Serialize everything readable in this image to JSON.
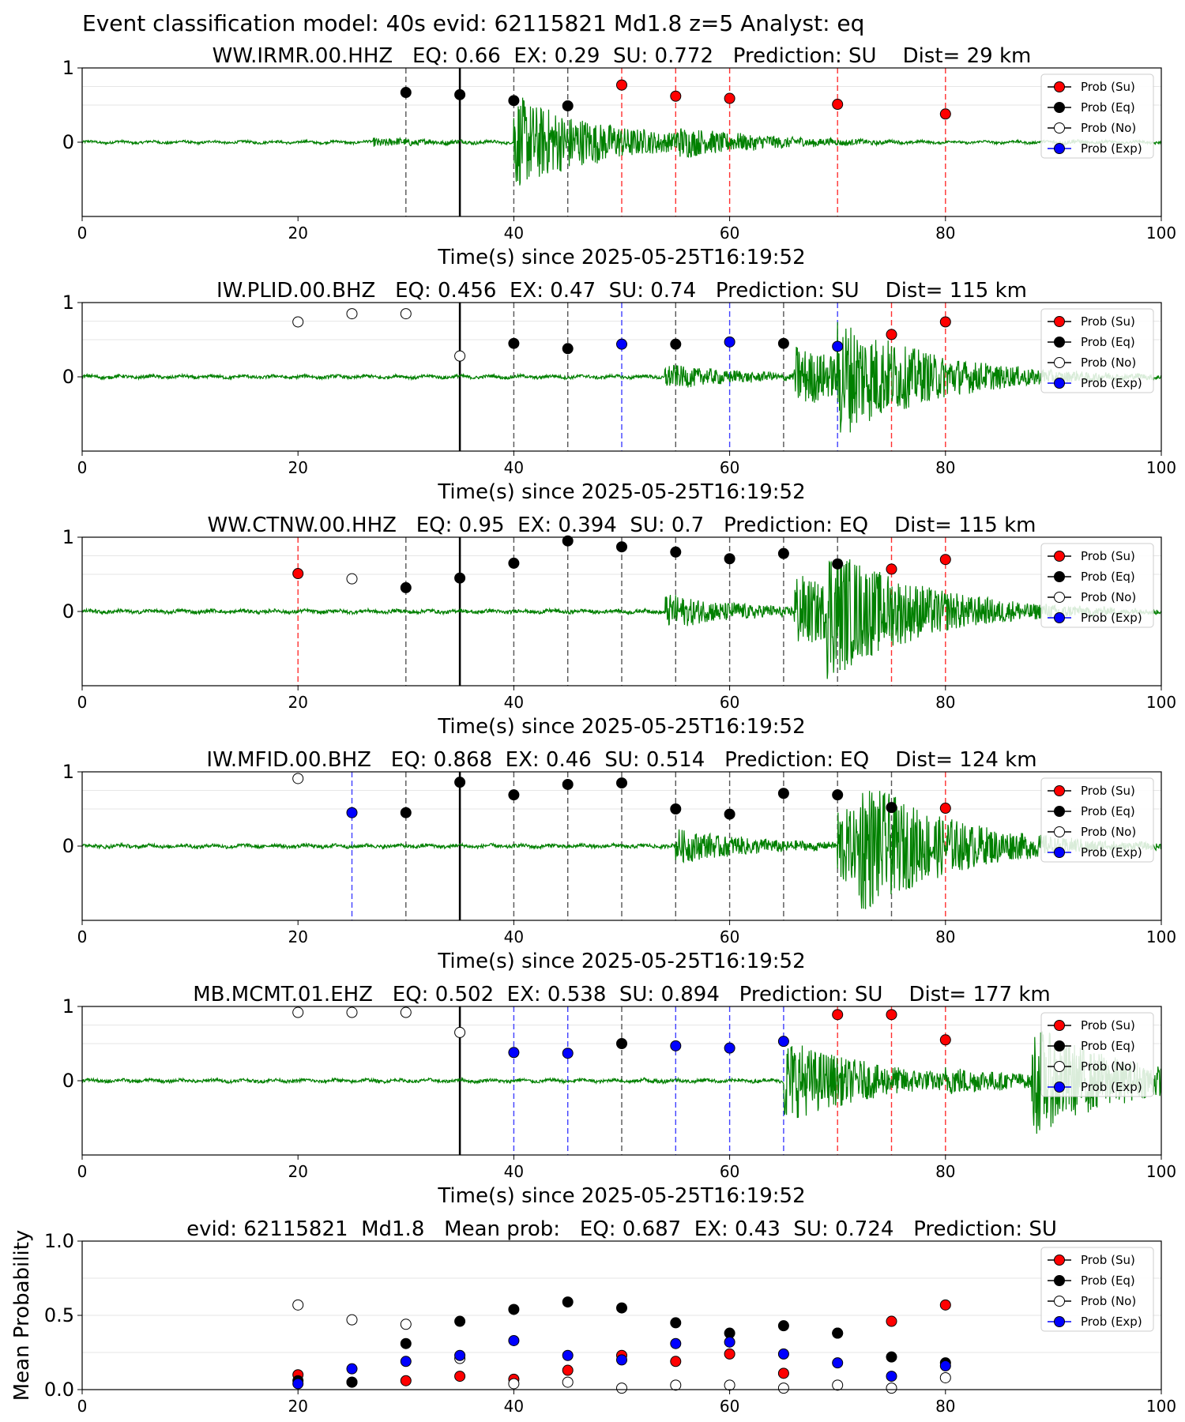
{
  "figure": {
    "suptitle": "Event classification model: 40s evid: 62115821 Md1.8 z=5 Analyst: eq"
  },
  "legend_entries": [
    "Prob (Su)",
    "Prob (Eq)",
    "Prob (No)",
    "Prob (Exp)"
  ],
  "colors": {
    "su": "#ff0000",
    "eq": "#000000",
    "no": "#ffffff",
    "exp": "#0000ff",
    "waveform": "#008000"
  },
  "chart_data": [
    {
      "type": "scatter",
      "title": "WW.IRMR.00.HHZ   EQ: 0.66  EX: 0.29  SU: 0.772   Prediction: SU    Dist= 29 km",
      "xlabel": "Time(s) since 2025-05-25T16:19:52",
      "ylabel": "",
      "xlim": [
        0,
        100
      ],
      "ylim": [
        -1,
        1
      ],
      "xticks": [
        "0",
        "20",
        "40",
        "60",
        "80",
        "100"
      ],
      "yticks": [
        "0",
        "1"
      ],
      "legend_position": "top-right",
      "origin_time": 35,
      "waveform": {
        "amplitude": 0.65,
        "onsets": [
          [
            27,
            0.1
          ],
          [
            40,
            1.0
          ],
          [
            55,
            0.35
          ],
          [
            90,
            0.05
          ]
        ]
      },
      "points": [
        {
          "x": 30,
          "y": 0.67,
          "class": "eq"
        },
        {
          "x": 35,
          "y": 0.64,
          "class": "eq"
        },
        {
          "x": 40,
          "y": 0.56,
          "class": "eq"
        },
        {
          "x": 45,
          "y": 0.49,
          "class": "eq"
        },
        {
          "x": 50,
          "y": 0.77,
          "class": "su"
        },
        {
          "x": 55,
          "y": 0.62,
          "class": "su"
        },
        {
          "x": 60,
          "y": 0.59,
          "class": "su"
        },
        {
          "x": 70,
          "y": 0.51,
          "class": "su"
        },
        {
          "x": 80,
          "y": 0.38,
          "class": "su"
        }
      ]
    },
    {
      "type": "scatter",
      "title": "IW.PLID.00.BHZ   EQ: 0.456  EX: 0.47  SU: 0.74   Prediction: SU    Dist= 115 km",
      "xlabel": "Time(s) since 2025-05-25T16:19:52",
      "ylabel": "",
      "xlim": [
        0,
        100
      ],
      "ylim": [
        -1,
        1
      ],
      "xticks": [
        "0",
        "20",
        "40",
        "60",
        "80",
        "100"
      ],
      "yticks": [
        "0",
        "1"
      ],
      "legend_position": "top-right",
      "origin_time": 35,
      "waveform": {
        "amplitude": 0.85,
        "onsets": [
          [
            54,
            0.2
          ],
          [
            66,
            0.5
          ],
          [
            70,
            1.0
          ],
          [
            78,
            0.2
          ]
        ]
      },
      "points": [
        {
          "x": 20,
          "y": 0.74,
          "class": "no"
        },
        {
          "x": 25,
          "y": 0.85,
          "class": "no"
        },
        {
          "x": 30,
          "y": 0.85,
          "class": "no"
        },
        {
          "x": 35,
          "y": 0.28,
          "class": "no"
        },
        {
          "x": 40,
          "y": 0.45,
          "class": "eq"
        },
        {
          "x": 45,
          "y": 0.38,
          "class": "eq"
        },
        {
          "x": 50,
          "y": 0.44,
          "class": "exp"
        },
        {
          "x": 55,
          "y": 0.44,
          "class": "eq"
        },
        {
          "x": 60,
          "y": 0.47,
          "class": "exp"
        },
        {
          "x": 65,
          "y": 0.45,
          "class": "eq"
        },
        {
          "x": 70,
          "y": 0.41,
          "class": "exp"
        },
        {
          "x": 75,
          "y": 0.57,
          "class": "su"
        },
        {
          "x": 80,
          "y": 0.74,
          "class": "su"
        }
      ]
    },
    {
      "type": "scatter",
      "title": "WW.CTNW.00.HHZ   EQ: 0.95  EX: 0.394  SU: 0.7   Prediction: EQ    Dist= 115 km",
      "xlabel": "Time(s) since 2025-05-25T16:19:52",
      "ylabel": "",
      "xlim": [
        0,
        100
      ],
      "ylim": [
        -1,
        1
      ],
      "xticks": [
        "0",
        "20",
        "40",
        "60",
        "80",
        "100"
      ],
      "yticks": [
        "0",
        "1"
      ],
      "legend_position": "top-right",
      "origin_time": 35,
      "waveform": {
        "amplitude": 0.95,
        "onsets": [
          [
            54,
            0.25
          ],
          [
            66,
            0.55
          ],
          [
            69,
            1.0
          ],
          [
            77,
            0.1
          ]
        ]
      },
      "points": [
        {
          "x": 20,
          "y": 0.51,
          "class": "su"
        },
        {
          "x": 25,
          "y": 0.44,
          "class": "no"
        },
        {
          "x": 30,
          "y": 0.32,
          "class": "eq"
        },
        {
          "x": 35,
          "y": 0.45,
          "class": "eq"
        },
        {
          "x": 40,
          "y": 0.65,
          "class": "eq"
        },
        {
          "x": 45,
          "y": 0.95,
          "class": "eq"
        },
        {
          "x": 50,
          "y": 0.87,
          "class": "eq"
        },
        {
          "x": 55,
          "y": 0.8,
          "class": "eq"
        },
        {
          "x": 60,
          "y": 0.71,
          "class": "eq"
        },
        {
          "x": 65,
          "y": 0.78,
          "class": "eq"
        },
        {
          "x": 70,
          "y": 0.64,
          "class": "eq"
        },
        {
          "x": 75,
          "y": 0.57,
          "class": "su"
        },
        {
          "x": 80,
          "y": 0.7,
          "class": "su"
        }
      ]
    },
    {
      "type": "scatter",
      "title": "IW.MFID.00.BHZ   EQ: 0.868  EX: 0.46  SU: 0.514   Prediction: EQ    Dist= 124 km",
      "xlabel": "Time(s) since 2025-05-25T16:19:52",
      "ylabel": "",
      "xlim": [
        0,
        100
      ],
      "ylim": [
        -1,
        1
      ],
      "xticks": [
        "0",
        "20",
        "40",
        "60",
        "80",
        "100"
      ],
      "yticks": [
        "0",
        "1"
      ],
      "legend_position": "top-right",
      "origin_time": 35,
      "waveform": {
        "amplitude": 0.95,
        "onsets": [
          [
            55,
            0.25
          ],
          [
            70,
            0.6
          ],
          [
            72,
            1.0
          ],
          [
            78,
            0.15
          ]
        ]
      },
      "points": [
        {
          "x": 20,
          "y": 0.91,
          "class": "no"
        },
        {
          "x": 25,
          "y": 0.45,
          "class": "exp"
        },
        {
          "x": 30,
          "y": 0.45,
          "class": "eq"
        },
        {
          "x": 35,
          "y": 0.86,
          "class": "eq"
        },
        {
          "x": 40,
          "y": 0.69,
          "class": "eq"
        },
        {
          "x": 45,
          "y": 0.83,
          "class": "eq"
        },
        {
          "x": 50,
          "y": 0.85,
          "class": "eq"
        },
        {
          "x": 55,
          "y": 0.5,
          "class": "eq"
        },
        {
          "x": 60,
          "y": 0.43,
          "class": "eq"
        },
        {
          "x": 65,
          "y": 0.71,
          "class": "eq"
        },
        {
          "x": 70,
          "y": 0.69,
          "class": "eq"
        },
        {
          "x": 75,
          "y": 0.52,
          "class": "eq"
        },
        {
          "x": 80,
          "y": 0.51,
          "class": "su"
        }
      ]
    },
    {
      "type": "scatter",
      "title": "MB.MCMT.01.EHZ   EQ: 0.502  EX: 0.538  SU: 0.894   Prediction: SU    Dist= 177 km",
      "xlabel": "Time(s) since 2025-05-25T16:19:52",
      "ylabel": "",
      "xlim": [
        0,
        100
      ],
      "ylim": [
        -1,
        1
      ],
      "xticks": [
        "0",
        "20",
        "40",
        "60",
        "80",
        "100"
      ],
      "yticks": [
        "0",
        "1"
      ],
      "legend_position": "top-right",
      "origin_time": 35,
      "waveform": {
        "amplitude": 0.85,
        "onsets": [
          [
            52,
            0.04
          ],
          [
            65,
            0.7
          ],
          [
            80,
            0.25
          ],
          [
            88,
            0.9
          ],
          [
            96,
            0.3
          ]
        ]
      },
      "points": [
        {
          "x": 20,
          "y": 0.92,
          "class": "no"
        },
        {
          "x": 25,
          "y": 0.92,
          "class": "no"
        },
        {
          "x": 30,
          "y": 0.92,
          "class": "no"
        },
        {
          "x": 35,
          "y": 0.65,
          "class": "no"
        },
        {
          "x": 40,
          "y": 0.38,
          "class": "exp"
        },
        {
          "x": 45,
          "y": 0.37,
          "class": "exp"
        },
        {
          "x": 50,
          "y": 0.5,
          "class": "eq"
        },
        {
          "x": 55,
          "y": 0.47,
          "class": "exp"
        },
        {
          "x": 60,
          "y": 0.44,
          "class": "exp"
        },
        {
          "x": 65,
          "y": 0.53,
          "class": "exp"
        },
        {
          "x": 70,
          "y": 0.89,
          "class": "su"
        },
        {
          "x": 75,
          "y": 0.89,
          "class": "su"
        },
        {
          "x": 80,
          "y": 0.55,
          "class": "su"
        }
      ]
    },
    {
      "type": "scatter",
      "title": "evid: 62115821  Md1.8   Mean prob:   EQ: 0.687  EX: 0.43  SU: 0.724   Prediction: SU",
      "xlabel": "",
      "ylabel": "Mean Probability",
      "xlim": [
        0,
        100
      ],
      "ylim": [
        0,
        1
      ],
      "xticks": [
        "0",
        "20",
        "40",
        "60",
        "80",
        "100"
      ],
      "yticks": [
        "0.0",
        "0.5",
        "1.0"
      ],
      "legend_position": "top-right",
      "x": [
        20,
        25,
        30,
        35,
        40,
        45,
        50,
        55,
        60,
        65,
        70,
        75,
        80
      ],
      "series": [
        {
          "name": "Prob (Su)",
          "class": "su",
          "values": [
            0.1,
            0.05,
            0.06,
            0.09,
            0.07,
            0.13,
            0.23,
            0.19,
            0.24,
            0.11,
            0.38,
            0.46,
            0.57
          ]
        },
        {
          "name": "Prob (Eq)",
          "class": "eq",
          "values": [
            0.06,
            0.05,
            0.31,
            0.46,
            0.54,
            0.59,
            0.55,
            0.45,
            0.38,
            0.43,
            0.38,
            0.22,
            0.18
          ]
        },
        {
          "name": "Prob (No)",
          "class": "no",
          "values": [
            0.57,
            0.47,
            0.44,
            0.21,
            0.04,
            0.05,
            0.01,
            0.03,
            0.03,
            0.01,
            0.03,
            0.01,
            0.08
          ]
        },
        {
          "name": "Prob (Exp)",
          "class": "exp",
          "values": [
            0.04,
            0.14,
            0.19,
            0.23,
            0.33,
            0.23,
            0.2,
            0.31,
            0.32,
            0.24,
            0.18,
            0.09,
            0.16
          ]
        }
      ]
    }
  ]
}
